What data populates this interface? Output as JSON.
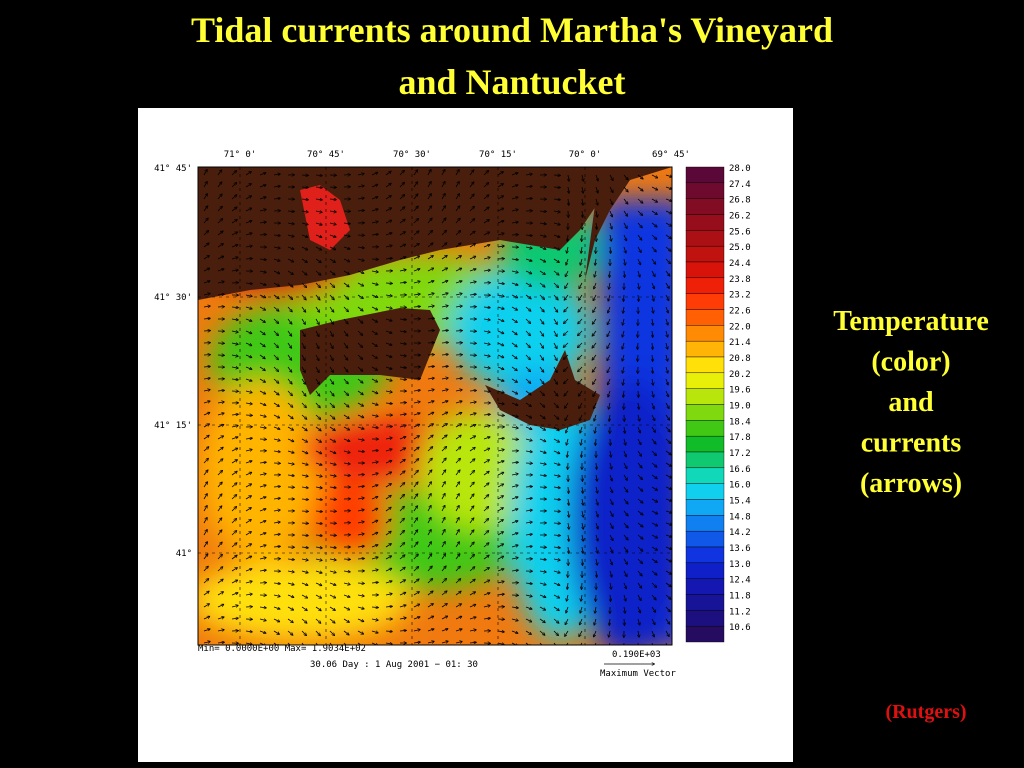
{
  "title": {
    "line1": "Tidal currents around Martha's Vineyard",
    "line2": "and Nantucket"
  },
  "map": {
    "longitudes": [
      "71° 0'",
      "70° 45'",
      "70° 30'",
      "70° 15'",
      "70° 0'",
      "69° 45'"
    ],
    "latitudes": [
      "41° 45'",
      "41° 30'",
      "41° 15'",
      "41°"
    ],
    "colorbar": [
      {
        "label": "28.0",
        "color": "#5a0838"
      },
      {
        "label": "27.4",
        "color": "#6e0a2e"
      },
      {
        "label": "26.8",
        "color": "#820c24"
      },
      {
        "label": "26.2",
        "color": "#960e1c"
      },
      {
        "label": "25.6",
        "color": "#aa1014"
      },
      {
        "label": "25.0",
        "color": "#c0120e"
      },
      {
        "label": "24.4",
        "color": "#d8140a"
      },
      {
        "label": "23.8",
        "color": "#ee2008"
      },
      {
        "label": "23.2",
        "color": "#ff3c06"
      },
      {
        "label": "22.6",
        "color": "#ff6004"
      },
      {
        "label": "22.0",
        "color": "#ff8a04"
      },
      {
        "label": "21.4",
        "color": "#ffb406"
      },
      {
        "label": "20.8",
        "color": "#ffe008"
      },
      {
        "label": "20.2",
        "color": "#e8f00a"
      },
      {
        "label": "19.6",
        "color": "#b8e60c"
      },
      {
        "label": "19.0",
        "color": "#80d80e"
      },
      {
        "label": "18.4",
        "color": "#40c814"
      },
      {
        "label": "17.8",
        "color": "#10bc28"
      },
      {
        "label": "17.2",
        "color": "#10c870"
      },
      {
        "label": "16.6",
        "color": "#10d8b8"
      },
      {
        "label": "16.0",
        "color": "#10d0ee"
      },
      {
        "label": "15.4",
        "color": "#10a8f4"
      },
      {
        "label": "14.8",
        "color": "#1080f0"
      },
      {
        "label": "14.2",
        "color": "#1058e8"
      },
      {
        "label": "13.6",
        "color": "#1034e0"
      },
      {
        "label": "13.0",
        "color": "#1020c8"
      },
      {
        "label": "12.4",
        "color": "#1418b0"
      },
      {
        "label": "11.8",
        "color": "#181498"
      },
      {
        "label": "11.2",
        "color": "#1c1080"
      },
      {
        "label": "10.6",
        "color": "#260c60"
      }
    ],
    "minmax": "Min= 0.0000E+00   Max= 1.9034E+02",
    "time": "30.06 Day        :    1 Aug 2001  −  01: 30",
    "vector_value": "0.190E+03",
    "vector_label": "Maximum Vector"
  },
  "side": {
    "lines": [
      "Temperature",
      "(color)",
      "and",
      "currents",
      "(arrows)"
    ],
    "credit": "(Rutgers)"
  }
}
